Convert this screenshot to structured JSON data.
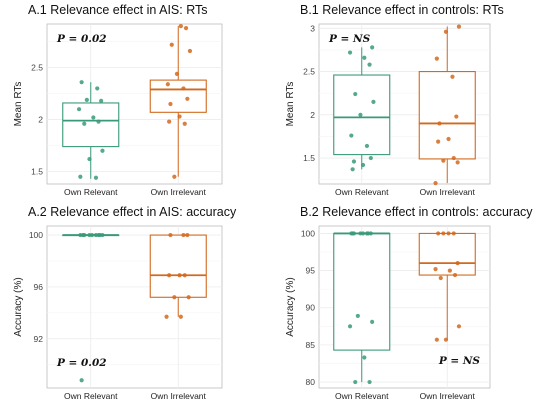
{
  "chart_data": [
    {
      "id": "A1",
      "type": "box",
      "title": "A.1 Relevance effect in AIS: RTs",
      "ylabel": "Mean RTs",
      "categories": [
        "Own Relevant",
        "Own Irrelevant"
      ],
      "ylim": [
        1.38,
        2.92
      ],
      "yticks": [
        1.5,
        2.0,
        2.5
      ],
      "annotation": "P = 0.02",
      "annotation_pos": "top-left",
      "colors": [
        "#3a9a78",
        "#d2691e"
      ],
      "boxes": [
        {
          "q1": 1.74,
          "median": 1.99,
          "q3": 2.16,
          "whisker_low": 1.43,
          "whisker_high": 2.36
        },
        {
          "q1": 2.07,
          "median": 2.29,
          "q3": 2.38,
          "whisker_low": 1.45,
          "whisker_high": 2.9
        }
      ],
      "points": [
        [
          2.36,
          2.3,
          2.19,
          2.18,
          2.1,
          2.02,
          1.98,
          1.96,
          1.7,
          1.62,
          1.45,
          1.44
        ],
        [
          2.9,
          2.88,
          2.72,
          2.66,
          2.44,
          2.34,
          2.3,
          2.2,
          2.15,
          2.03,
          1.98,
          1.96,
          1.45
        ]
      ]
    },
    {
      "id": "B1",
      "type": "box",
      "title": "B.1  Relevance effect in controls: RTs",
      "ylabel": "Mean RTs",
      "categories": [
        "Own Relevant",
        "Own Irrelevant"
      ],
      "ylim": [
        1.2,
        3.05
      ],
      "yticks": [
        1.5,
        2.0,
        2.5,
        3.0
      ],
      "annotation": "P = NS",
      "annotation_pos": "top-left",
      "colors": [
        "#3a9a78",
        "#d2691e"
      ],
      "boxes": [
        {
          "q1": 1.54,
          "median": 1.97,
          "q3": 2.46,
          "whisker_low": 1.37,
          "whisker_high": 2.78
        },
        {
          "q1": 1.49,
          "median": 1.9,
          "q3": 2.5,
          "whisker_low": 1.21,
          "whisker_high": 3.02
        }
      ],
      "points": [
        [
          2.78,
          2.72,
          2.66,
          2.58,
          2.24,
          2.15,
          2.0,
          1.76,
          1.64,
          1.5,
          1.46,
          1.42,
          1.37
        ],
        [
          3.02,
          2.96,
          2.65,
          2.44,
          1.98,
          1.9,
          1.72,
          1.69,
          1.5,
          1.47,
          1.45,
          1.21
        ]
      ]
    },
    {
      "id": "A2",
      "type": "box",
      "title": "A.2 Relevance effect in AIS: accuracy",
      "ylabel": "Accuracy (%)",
      "categories": [
        "Own Relevant",
        "Own Irrelevant"
      ],
      "ylim": [
        88.2,
        100.7
      ],
      "yticks": [
        92,
        96,
        100
      ],
      "annotation": "P = 0.02",
      "annotation_pos": "bottom-left",
      "colors": [
        "#3a9a78",
        "#d2691e"
      ],
      "boxes": [
        {
          "q1": 100,
          "median": 100,
          "q3": 100,
          "whisker_low": 100,
          "whisker_high": 100
        },
        {
          "q1": 95.2,
          "median": 96.9,
          "q3": 100,
          "whisker_low": 93.7,
          "whisker_high": 100
        }
      ],
      "points": [
        [
          100,
          100,
          100,
          100,
          100,
          100,
          100,
          100,
          100,
          88.8
        ],
        [
          100,
          100,
          100,
          96.9,
          96.9,
          96.9,
          95.2,
          95.2,
          93.7,
          93.7
        ]
      ]
    },
    {
      "id": "B2",
      "type": "box",
      "title": "B.2  Relevance effect in controls: accuracy",
      "ylabel": "Accuracy (%)",
      "categories": [
        "Own Relevant",
        "Own Irrelevant"
      ],
      "ylim": [
        79.2,
        101
      ],
      "yticks": [
        80,
        85,
        90,
        95,
        100
      ],
      "annotation": "P = NS",
      "annotation_pos": "bottom-right",
      "colors": [
        "#3a9a78",
        "#d2691e"
      ],
      "boxes": [
        {
          "q1": 84.3,
          "median": 100,
          "q3": 100,
          "whisker_low": 80,
          "whisker_high": 100
        },
        {
          "q1": 94.4,
          "median": 96.0,
          "q3": 100,
          "whisker_low": 85.7,
          "whisker_high": 100
        }
      ],
      "points": [
        [
          100,
          100,
          100,
          100,
          100,
          100,
          100,
          100,
          88.9,
          88.1,
          87.5,
          83.3,
          80,
          80
        ],
        [
          100,
          100,
          100,
          100,
          96.0,
          95.2,
          95.0,
          94.4,
          94.0,
          87.5,
          85.7,
          85.7
        ]
      ]
    }
  ]
}
